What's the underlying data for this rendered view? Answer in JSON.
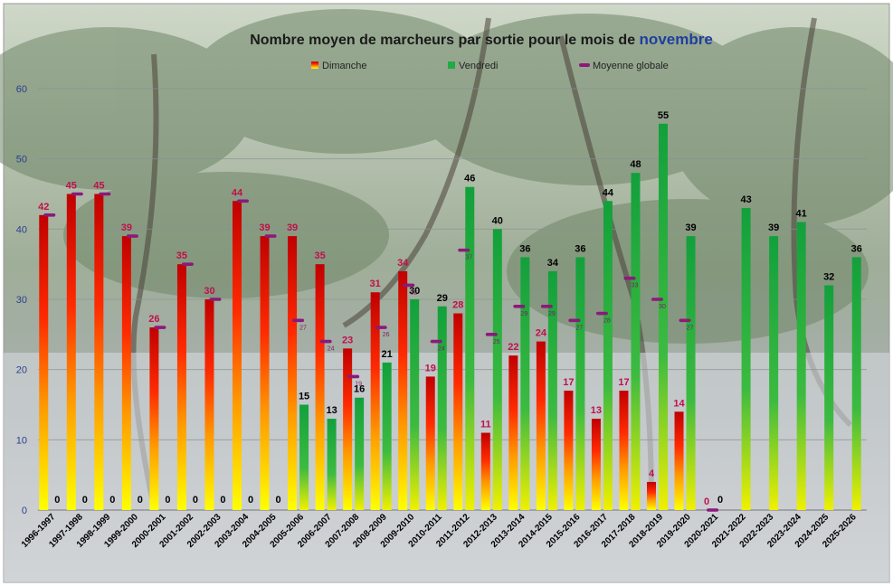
{
  "chart_data": {
    "type": "bar",
    "title": "Nombre moyen de marcheurs par sortie pour le mois de",
    "title_month": "novembre",
    "ylim": [
      0,
      60
    ],
    "yticks": [
      0,
      10,
      20,
      30,
      40,
      50,
      60
    ],
    "grid": true,
    "legend_position": "top",
    "categories": [
      "1996-1997",
      "1997-1998",
      "1998-1999",
      "1999-2000",
      "2000-2001",
      "2001-2002",
      "2002-2003",
      "2003-2004",
      "2004-2005",
      "2005-2006",
      "2006-2007",
      "2007-2008",
      "2008-2009",
      "2009-2010",
      "2010-2011",
      "2011-2012",
      "2012-2013",
      "2013-2014",
      "2014-2015",
      "2015-2016",
      "2016-2017",
      "2017-2018",
      "2018-2019",
      "2019-2020",
      "2020-2021",
      "2021-2022",
      "2022-2023",
      "2023-2024",
      "2024-2025",
      "2025-2026"
    ],
    "series": [
      {
        "name": "Dimanche",
        "color_top": "#c00000",
        "color_mid": "#ff6a00",
        "color_bottom": "#ffff00",
        "label_color": "#c0104a",
        "values": [
          42,
          45,
          45,
          39,
          26,
          35,
          30,
          44,
          39,
          39,
          35,
          23,
          31,
          34,
          19,
          28,
          11,
          22,
          24,
          17,
          13,
          17,
          4,
          14,
          0,
          null,
          null,
          null,
          null,
          null
        ]
      },
      {
        "name": "Vendredi",
        "color_top": "#1a9a3a",
        "color_mid": "#33bb44",
        "color_bottom": "#e8f000",
        "label_color": "#000000",
        "values": [
          0,
          0,
          0,
          0,
          0,
          0,
          0,
          0,
          0,
          15,
          13,
          16,
          21,
          30,
          29,
          46,
          40,
          36,
          34,
          36,
          44,
          48,
          55,
          39,
          0,
          43,
          39,
          41,
          32,
          36
        ]
      },
      {
        "name": "Moyenne globale",
        "color": "#8b1a7a",
        "values": [
          42,
          45,
          45,
          39,
          26,
          35,
          30,
          44,
          39,
          27,
          24,
          19,
          26,
          32,
          24,
          37,
          25,
          29,
          29,
          27,
          28,
          33,
          30,
          27,
          0,
          null,
          null,
          null,
          null,
          null
        ]
      }
    ]
  }
}
